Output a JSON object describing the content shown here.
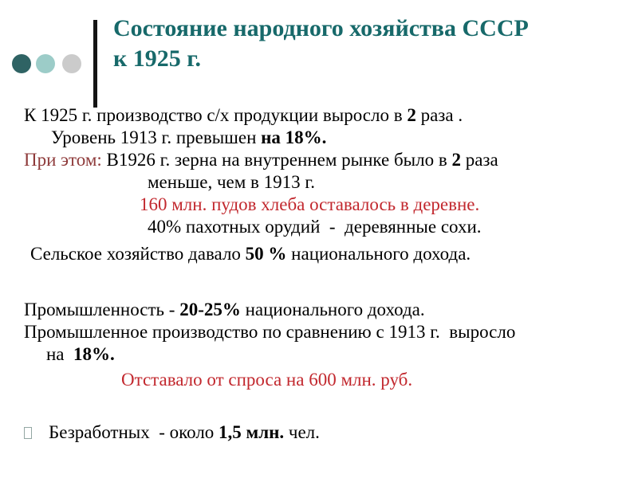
{
  "slide": {
    "title": {
      "line1": "Состояние народного хозяйства СССР",
      "line2": "к 1925 г."
    },
    "colors": {
      "title": "#17696A",
      "red": "#C2282E",
      "dark_red": "#8E3A3A",
      "text": "#000000",
      "bar": "#141414",
      "circle_dark_teal": "#2F6364",
      "circle_light_teal": "#9CCCC8",
      "circle_gray": "#CBCBCB",
      "bullet_border": "#93A7A3"
    },
    "decorations": {
      "circles": [
        "dark-teal-circle",
        "light-teal-circle",
        "gray-circle"
      ],
      "accent_bar": "vertical-black-bar"
    },
    "body": {
      "lines": [
        {
          "segments": [
            {
              "t": "К 1925 г. производство с/х продукции выросло в "
            },
            {
              "t": "2",
              "b": true
            },
            {
              "t": " раза ."
            }
          ]
        },
        {
          "segments": [
            {
              "t": "Уровень 1913 г. превышен "
            },
            {
              "t": "на 18%.",
              "b": true
            }
          ]
        },
        {
          "segments": [
            {
              "t": "При этом:",
              "color": "dark_red"
            },
            {
              "t": " В1926 г. зерна на внутреннем рынке было в "
            },
            {
              "t": "2",
              "b": true
            },
            {
              "t": " раза"
            }
          ]
        },
        {
          "segments": [
            {
              "t": "меньше, чем в 1913 г."
            }
          ]
        },
        {
          "segments": [
            {
              "t": "160 млн. пудов хлеба оставалось в деревне.",
              "color": "red"
            }
          ]
        },
        {
          "segments": [
            {
              "t": "40% пахотных орудий  -  деревянные сохи."
            }
          ]
        },
        {
          "segments": [
            {
              "t": "Сельское хозяйство давало "
            },
            {
              "t": "50 %",
              "b": true
            },
            {
              "t": " национального дохода."
            }
          ]
        },
        {
          "segments": [
            {
              "t": "Промышленность - "
            },
            {
              "t": "20-25%",
              "b": true
            },
            {
              "t": " национального дохода."
            }
          ]
        },
        {
          "segments": [
            {
              "t": "Промышленное производство по сравнению с 1913 г.  выросло"
            }
          ]
        },
        {
          "segments": [
            {
              "t": "на  "
            },
            {
              "t": "18%.",
              "b": true
            }
          ]
        },
        {
          "segments": [
            {
              "t": "Отставало от спроса на 600 млн. руб.",
              "color": "red"
            }
          ]
        },
        {
          "bullet": true,
          "segments": [
            {
              "t": "Безработных  - около "
            },
            {
              "t": "1,5 млн.",
              "b": true
            },
            {
              "t": " чел."
            }
          ]
        }
      ]
    }
  }
}
